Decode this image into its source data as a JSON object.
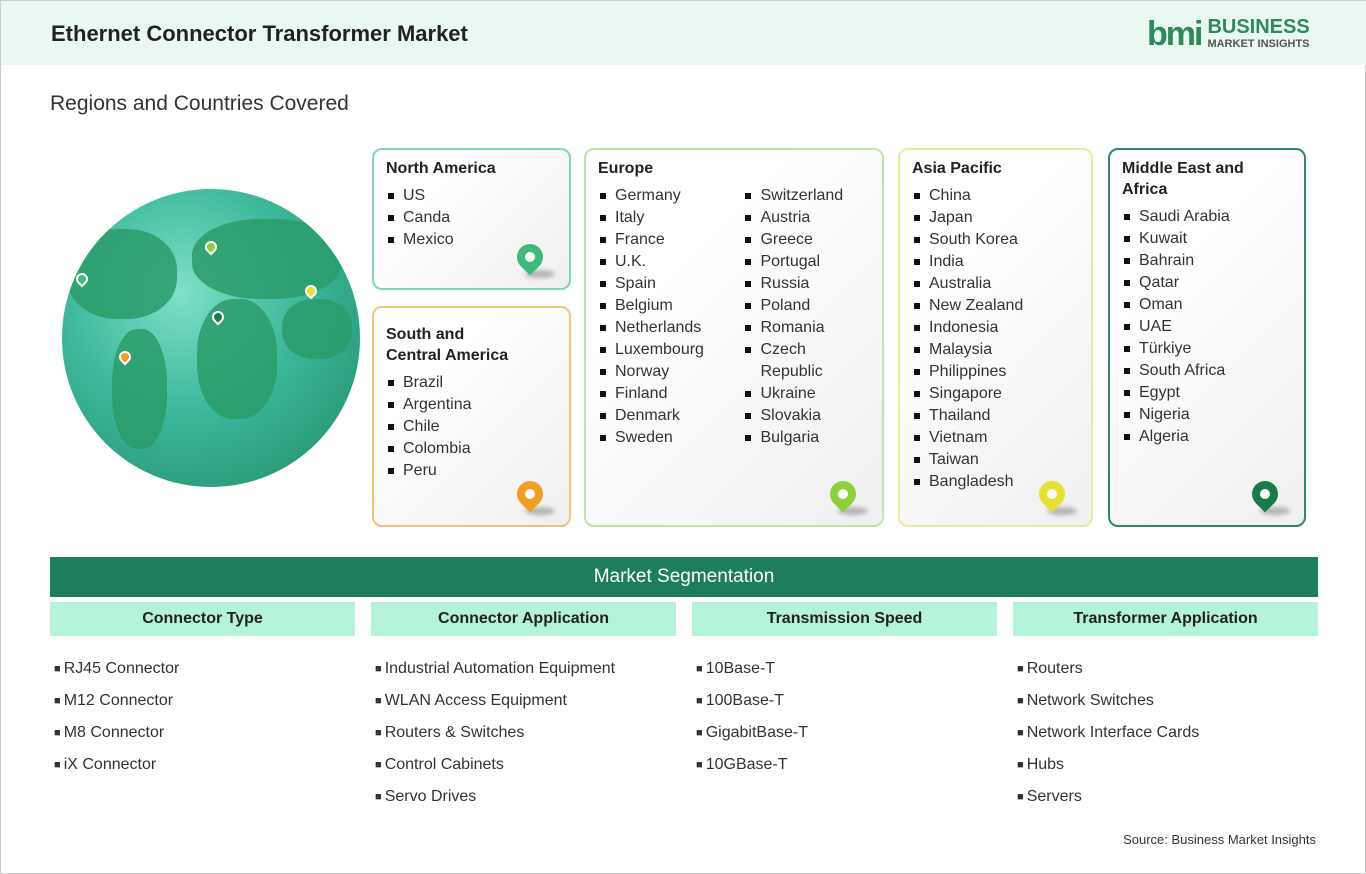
{
  "header": {
    "title": "Ethernet Connector Transformer Market",
    "logo_mark": "bmi",
    "logo_line1": "BUSINESS",
    "logo_line2": "MARKET INSIGHTS"
  },
  "subtitle": "Regions and Countries Covered",
  "regions": {
    "north_america": {
      "name": "North America",
      "countries": [
        "US",
        "Canda",
        "Mexico"
      ],
      "color": "#7fd6b2",
      "pin": "#3dbb7a"
    },
    "south_america": {
      "name": "South and Central America",
      "countries": [
        "Brazil",
        "Argentina",
        "Chile",
        "Colombia",
        "Peru"
      ],
      "color": "#f5c27a",
      "pin": "#f0a020"
    },
    "europe": {
      "name": "Europe",
      "countries": [
        "Germany",
        "Italy",
        "France",
        "U.K.",
        "Spain",
        "Belgium",
        "Netherlands",
        "Luxembourg",
        "Norway",
        "Finland",
        "Denmark",
        "Sweden",
        "Switzerland",
        "Austria",
        "Greece",
        "Portugal",
        "Russia",
        "Poland",
        "Romania",
        "Czech Republic",
        "Ukraine",
        "Slovakia",
        "Bulgaria"
      ],
      "color": "#bfe3a8",
      "pin": "#8fcf3a"
    },
    "asia_pacific": {
      "name": "Asia Pacific",
      "countries": [
        "China",
        "Japan",
        "South Korea",
        "India",
        "Australia",
        "New Zealand",
        "Indonesia",
        "Malaysia",
        "Philippines",
        "Singapore",
        "Thailand",
        "Vietnam",
        "Taiwan",
        "Bangladesh"
      ],
      "color": "#ecec98",
      "pin": "#e6e030"
    },
    "mea": {
      "name": "Middle East and Africa",
      "countries": [
        "Saudi Arabia",
        "Kuwait",
        "Bahrain",
        "Qatar",
        "Oman",
        "UAE",
        "Türkiye",
        "South Africa",
        "Egypt",
        "Nigeria",
        "Algeria"
      ],
      "color": "#2e8a60",
      "pin": "#1a7a4a"
    }
  },
  "segmentation": {
    "title": "Market Segmentation",
    "columns": [
      {
        "header": "Connector Type",
        "items": [
          "RJ45 Connector",
          "M12 Connector",
          "M8 Connector",
          "iX Connector"
        ]
      },
      {
        "header": "Connector Application",
        "items": [
          "Industrial Automation Equipment",
          "WLAN Access Equipment",
          "Routers & Switches",
          "Control Cabinets",
          "Servo Drives"
        ]
      },
      {
        "header": "Transmission Speed",
        "items": [
          "10Base-T",
          "100Base-T",
          "GigabitBase-T",
          "10GBase-T"
        ]
      },
      {
        "header": "Transformer Application",
        "items": [
          "Routers",
          "Network Switches",
          "Network Interface Cards",
          "Hubs",
          "Servers"
        ]
      }
    ]
  },
  "source": "Source: Business Market Insights"
}
